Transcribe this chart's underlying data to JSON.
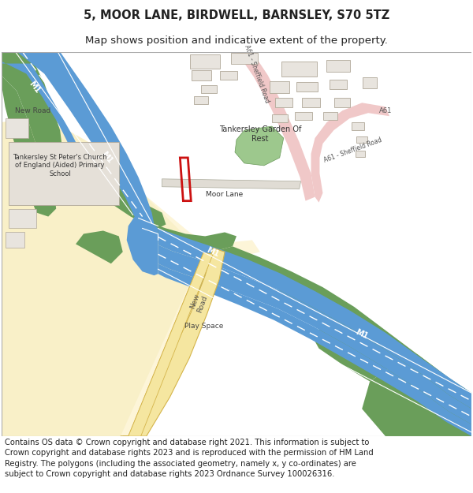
{
  "title_line1": "5, MOOR LANE, BIRDWELL, BARNSLEY, S70 5TZ",
  "title_line2": "Map shows position and indicative extent of the property.",
  "footer_text": "Contains OS data © Crown copyright and database right 2021. This information is subject to Crown copyright and database rights 2023 and is reproduced with the permission of HM Land Registry. The polygons (including the associated geometry, namely x, y co-ordinates) are subject to Crown copyright and database rights 2023 Ordnance Survey 100026316.",
  "title_fontsize": 10.5,
  "subtitle_fontsize": 9.5,
  "footer_fontsize": 7.2,
  "bg_color": "#ffffff",
  "map_bg": "#f5f2ed",
  "road_blue": "#5b9bd5",
  "road_white": "#ffffff",
  "road_yellow": "#f5e6a0",
  "road_yellow_edge": "#d4b44a",
  "grass_green": "#6a9e5a",
  "light_green": "#c5ddb5",
  "dark_green": "#5a8a4a",
  "cemetery_green": "#7ab870",
  "a61_pink": "#f0c8c8",
  "plot_red": "#cc1111",
  "text_dark": "#222222",
  "building_fill": "#e8e4de",
  "building_edge": "#b0a898",
  "figsize": [
    6.0,
    6.25
  ],
  "dpi": 100
}
